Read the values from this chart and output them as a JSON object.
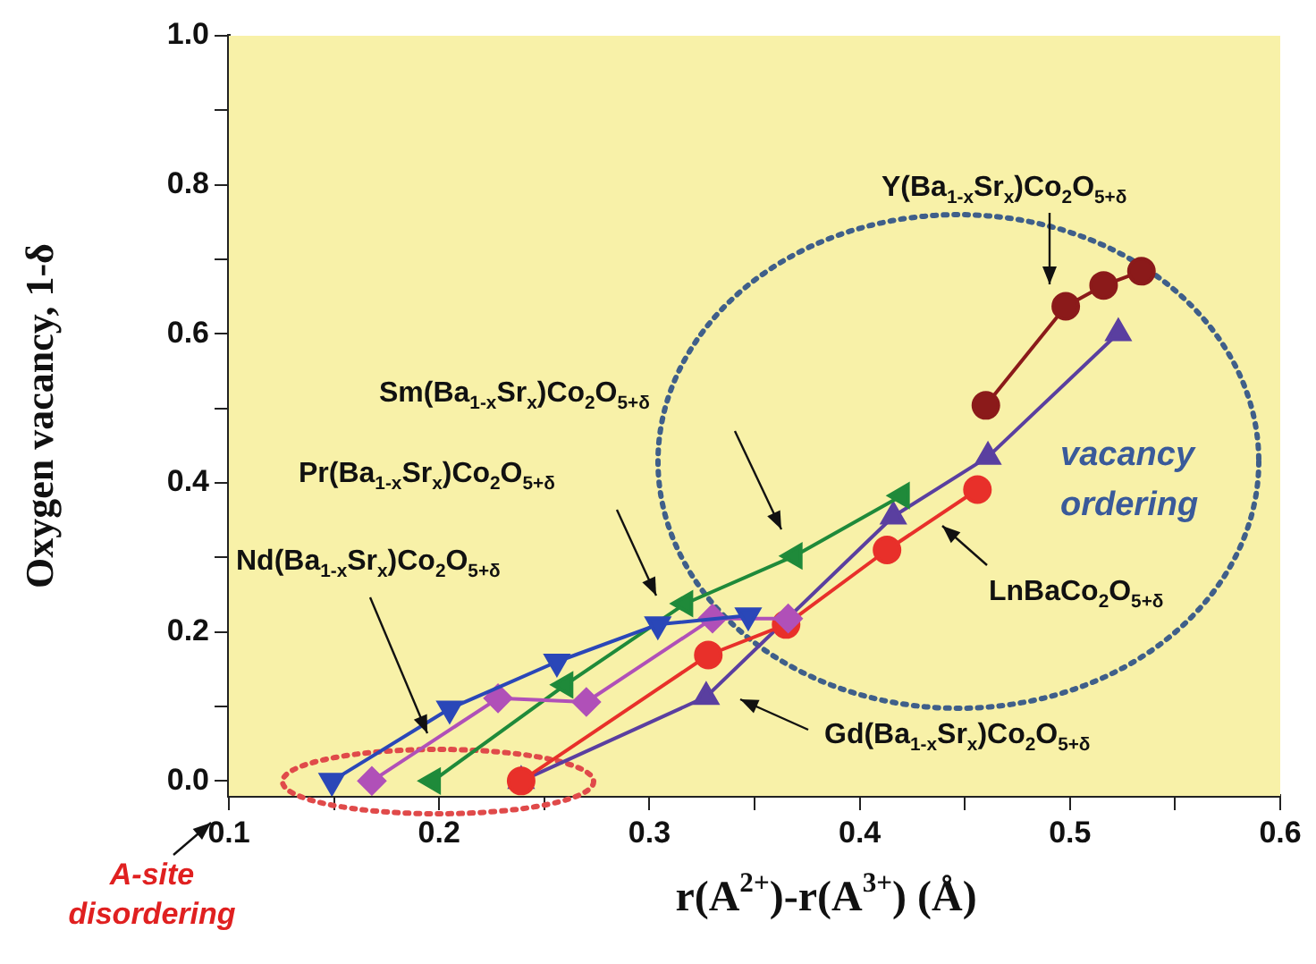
{
  "chart_data": {
    "type": "line",
    "xlabel": "r(A$^{2+}$)-r(A$^{3+}$) (Å)",
    "ylabel": "Oxygen vacancy, 1-δ",
    "xlim": [
      0.1,
      0.6
    ],
    "ylim": [
      -0.02,
      1.0
    ],
    "xticks": [
      0.1,
      {
        "value": 0.15,
        "label": null
      },
      0.2,
      {
        "value": 0.25,
        "label": null
      },
      0.3,
      {
        "value": 0.35,
        "label": null
      },
      0.4,
      {
        "value": 0.45,
        "label": null
      },
      0.5,
      {
        "value": 0.55,
        "label": null
      },
      0.6
    ],
    "yticks": [
      {
        "value": 0,
        "label": "0.0"
      },
      {
        "value": 0.1,
        "label": null
      },
      0.2,
      {
        "value": 0.3,
        "label": null
      },
      0.4,
      {
        "value": 0.5,
        "label": null
      },
      0.6,
      {
        "value": 0.7,
        "label": null
      },
      0.8,
      {
        "value": 0.9,
        "label": null
      },
      {
        "value": 1,
        "label": "1.0"
      }
    ],
    "grid": false,
    "legend": false,
    "line_style": "solid",
    "series": [
      {
        "marker": "triangle-down",
        "color": "#2a47b8",
        "x": [
          0.149,
          0.205,
          0.256,
          0.304,
          0.347
        ],
        "values": [
          0,
          0.097,
          0.16,
          0.21,
          0.222
        ]
      },
      {
        "marker": "diamond",
        "color": "#b050b8",
        "x": [
          0.168,
          0.228,
          0.27,
          0.33,
          0.366
        ],
        "values": [
          0,
          0.111,
          0.106,
          0.218,
          0.218
        ]
      },
      {
        "marker": "triangle-left",
        "color": "#1f8a3a",
        "x": [
          0.197,
          0.26,
          0.317,
          0.369,
          0.42
        ],
        "values": [
          0,
          0.129,
          0.238,
          0.302,
          0.383
        ]
      },
      {
        "marker": "circle",
        "color": "#e8302a",
        "x": [
          0.239,
          0.328,
          0.365,
          0.413,
          0.456
        ],
        "values": [
          0,
          0.169,
          0.21,
          0.31,
          0.391
        ]
      },
      {
        "marker": "triangle",
        "color": "#5a3fa0",
        "x": [
          0.239,
          0.327,
          0.416,
          0.461,
          0.523
        ],
        "values": [
          0,
          0.113,
          0.355,
          0.435,
          0.601
        ]
      },
      {
        "marker": "circle",
        "color": "#8b1a1a",
        "x": [
          0.46,
          0.498,
          0.516,
          0.534
        ],
        "values": [
          0.504,
          0.637,
          0.665,
          0.684
        ]
      }
    ],
    "annotations": [
      "Y(Ba$_{1-x}$Sr$_{x}$)Co$_{2}$O$_{5+δ}$",
      "Sm(Ba$_{1-x}$Sr$_{x}$)Co$_{2}$O$_{5+δ}$",
      "Pr(Ba$_{1-x}$Sr$_{x}$)Co$_{2}$O$_{5+δ}$",
      "Nd(Ba$_{1-x}$Sr$_{x}$)Co$_{2}$O$_{5+δ}$",
      "LnBaCo$_{2}$O$_{5+δ}$",
      "Gd(Ba$_{1-x}$Sr$_{x}$)Co$_{2}$O$_{5+δ}$",
      "vacancy ordering",
      "A-site disordering"
    ]
  }
}
